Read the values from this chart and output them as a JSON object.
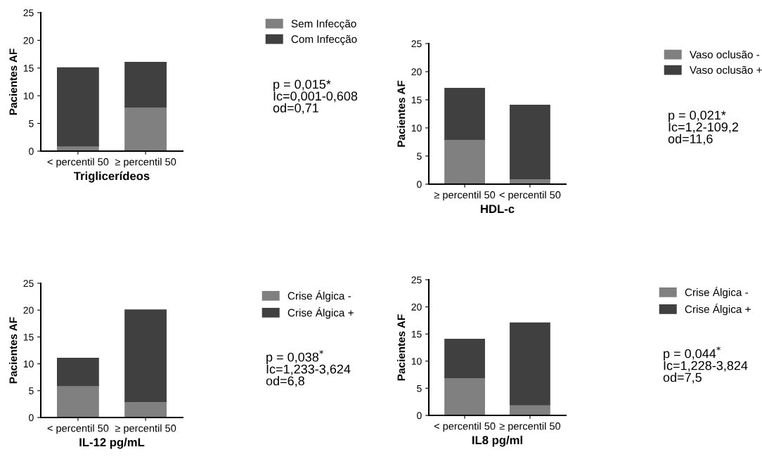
{
  "chart_data": [
    {
      "type": "bar",
      "stacked": true,
      "xlabel": "Triglicerídeos",
      "ylabel": "Pacientes AF",
      "categories": [
        "< percentil 50",
        "≥ percentil 50"
      ],
      "ylim": [
        0,
        25
      ],
      "yticks": [
        0,
        5,
        10,
        15,
        20,
        25
      ],
      "legend": "top right",
      "grid": false,
      "series": [
        {
          "name": "Sem Infecção",
          "color": "#808080",
          "values": [
            1,
            8
          ]
        },
        {
          "name": "Com Infecção",
          "color": "#404040",
          "values": [
            14,
            8
          ]
        }
      ],
      "annotations": [
        "p = 0,015*\nIc=0,001-0,608\nod=0,71"
      ]
    },
    {
      "type": "bar",
      "stacked": true,
      "xlabel": "HDL-c",
      "ylabel": "Pacientes AF",
      "categories": [
        "≥ percentil 50",
        "< percentil 50"
      ],
      "ylim": [
        0,
        25
      ],
      "yticks": [
        0,
        5,
        10,
        15,
        20,
        25
      ],
      "legend": "top right",
      "grid": false,
      "series": [
        {
          "name": "Vaso oclusão -",
          "color": "#808080",
          "values": [
            8,
            1
          ]
        },
        {
          "name": "Vaso oclusão +",
          "color": "#404040",
          "values": [
            9,
            13
          ]
        }
      ],
      "annotations": [
        "p = 0,021*\nIc=1,2-109,2\nod=11,6"
      ]
    },
    {
      "type": "bar",
      "stacked": true,
      "xlabel": "IL-12 pg/mL",
      "ylabel": "Pacientes AF",
      "categories": [
        "< percentil 50",
        "≥ percentil 50"
      ],
      "ylim": [
        0,
        25
      ],
      "yticks": [
        0,
        5,
        10,
        15,
        20,
        25
      ],
      "legend": "top right",
      "grid": false,
      "series": [
        {
          "name": "Crise Álgica -",
          "color": "#808080",
          "values": [
            6,
            3
          ]
        },
        {
          "name": "Crise Álgica +",
          "color": "#404040",
          "values": [
            5,
            17
          ]
        }
      ],
      "annotations": [
        "p = 0,038$^{*}$\nIc=1,233-3,624\nod=6,8"
      ]
    },
    {
      "type": "bar",
      "stacked": true,
      "xlabel": "IL8 pg/ml",
      "ylabel": "Pacientes AF",
      "categories": [
        "< percentil 50",
        "≥ percentil 50"
      ],
      "ylim": [
        0,
        25
      ],
      "yticks": [
        0,
        5,
        10,
        15,
        20,
        25
      ],
      "legend": "top right",
      "grid": false,
      "series": [
        {
          "name": "Crise Álgica -",
          "color": "#808080",
          "values": [
            7,
            2
          ]
        },
        {
          "name": "Crise Álgica +",
          "color": "#404040",
          "values": [
            7,
            15
          ]
        }
      ],
      "annotations": [
        "p = 0,044$^{*}$\nIc=1,228-3,824\nod=7,5"
      ]
    }
  ]
}
